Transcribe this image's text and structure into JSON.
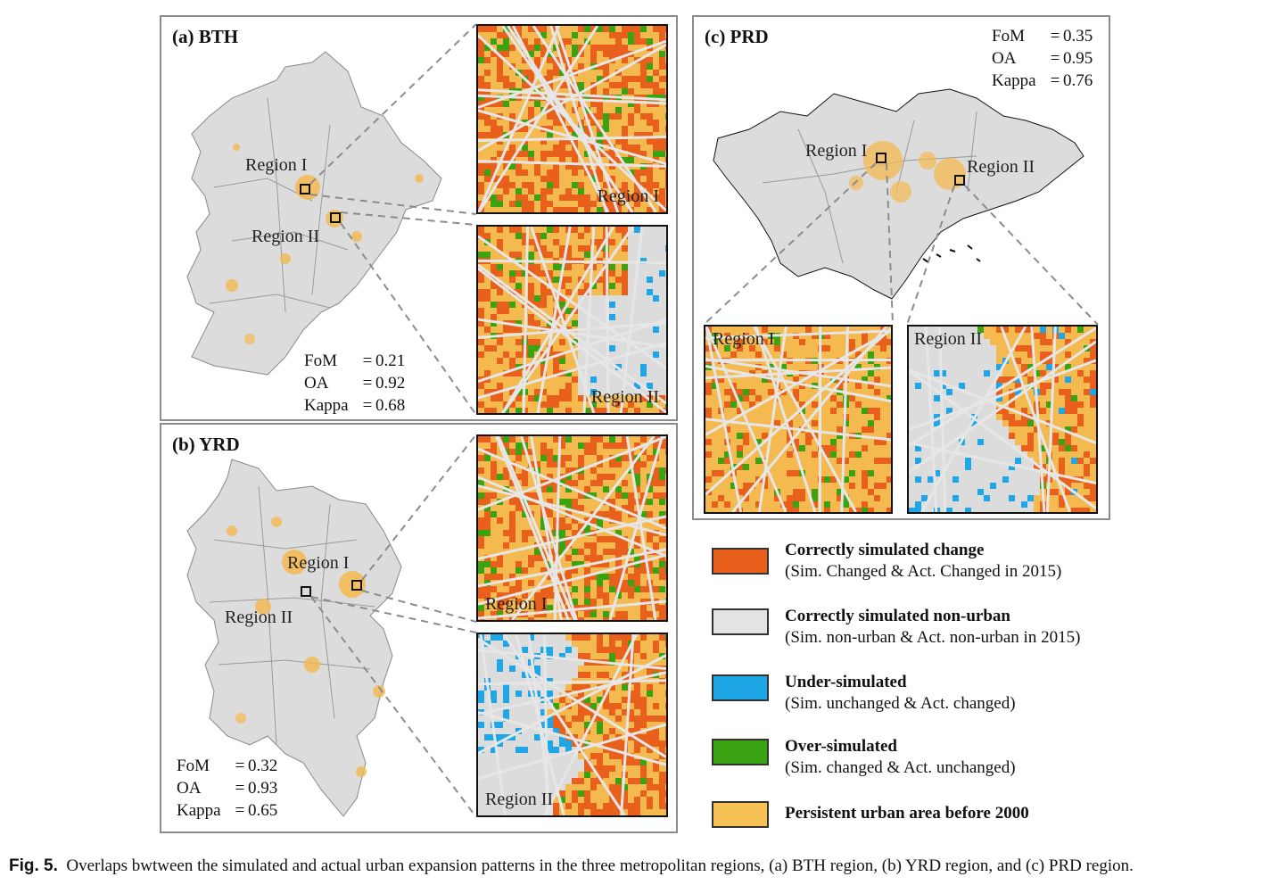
{
  "panels": {
    "a": {
      "title": "(a) BTH",
      "region1": "Region I",
      "region2": "Region II",
      "metrics": {
        "fom_label": "FoM",
        "fom": "0.21",
        "oa_label": "OA",
        "oa": "0.92",
        "kappa_label": "Kappa",
        "kappa": "0.68"
      }
    },
    "b": {
      "title": "(b) YRD",
      "region1": "Region I",
      "region2": "Region II",
      "metrics": {
        "fom_label": "FoM",
        "fom": "0.32",
        "oa_label": "OA",
        "oa": "0.93",
        "kappa_label": "Kappa",
        "kappa": "0.65"
      }
    },
    "c": {
      "title": "(c) PRD",
      "region1": "Region I",
      "region2": "Region II",
      "metrics": {
        "fom_label": "FoM",
        "fom": "0.35",
        "oa_label": "OA",
        "oa": "0.95",
        "kappa_label": "Kappa",
        "kappa": "0.76"
      }
    }
  },
  "equals": "=",
  "legend": [
    {
      "title": "Correctly simulated change",
      "desc": "(Sim. Changed & Act. Changed in 2015)",
      "color": "#e8601c"
    },
    {
      "title": "Correctly simulated non-urban",
      "desc": "(Sim. non-urban & Act. non-urban in 2015)",
      "color": "#e3e3e3"
    },
    {
      "title": "Under-simulated",
      "desc": "(Sim. unchanged & Act. changed)",
      "color": "#1ea6e6"
    },
    {
      "title": "Over-simulated",
      "desc": "(Sim. changed & Act. unchanged)",
      "color": "#3aa312"
    },
    {
      "title": "Persistent urban area before 2000",
      "desc": "",
      "color": "#f6c155"
    }
  ],
  "colors": {
    "land": "#dcdcdc",
    "boundary": "#888888",
    "coast": "#111111",
    "urban": "#f4b94f",
    "change": "#e8601c",
    "under": "#1ea6e6",
    "over": "#3aa312",
    "road": "#e6e6e6"
  },
  "caption": {
    "label": "Fig. 5.",
    "text": "Overlaps bwtween the simulated and actual urban expansion patterns in the three metropolitan regions, (a) BTH region, (b) YRD region, and (c) PRD region."
  }
}
